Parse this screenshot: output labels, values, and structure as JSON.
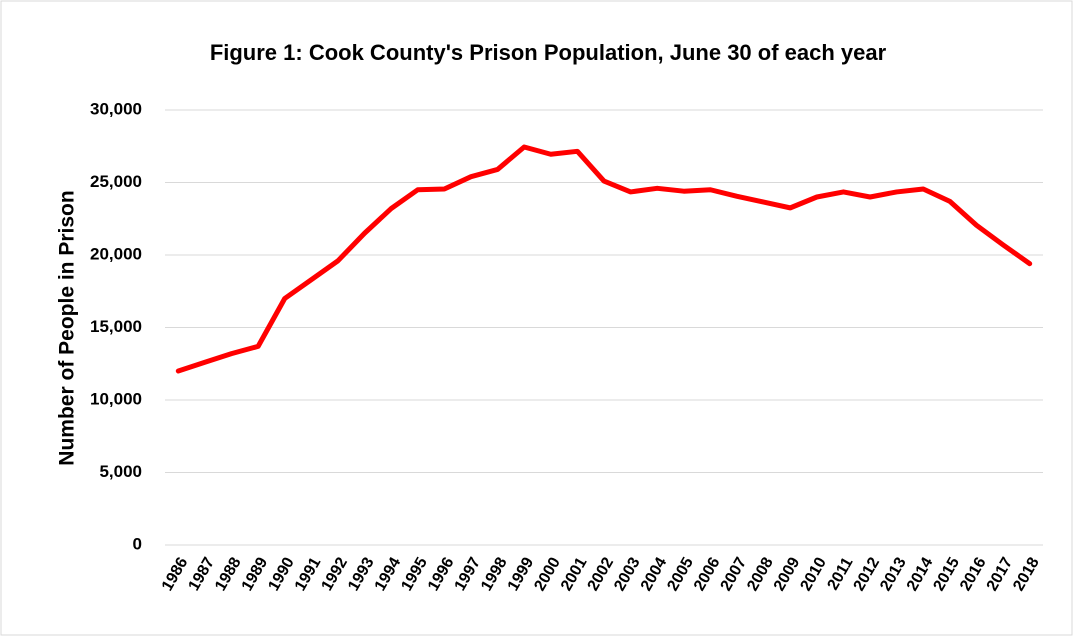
{
  "chart_data": {
    "type": "line",
    "title": "Figure 1: Cook County's Prison Population, June 30 of each year",
    "y_label": "Number of People in Prison",
    "categories": [
      "1986",
      "1987",
      "1988",
      "1989",
      "1990",
      "1991",
      "1992",
      "1993",
      "1994",
      "1995",
      "1996",
      "1997",
      "1998",
      "1999",
      "2000",
      "2001",
      "2002",
      "2003",
      "2004",
      "2005",
      "2006",
      "2007",
      "2008",
      "2009",
      "2010",
      "2011",
      "2012",
      "2013",
      "2014",
      "2015",
      "2016",
      "2017",
      "2018"
    ],
    "series": [
      {
        "name": "Prison Population",
        "color": "#ff0000",
        "values": [
          12000,
          12600,
          13200,
          13700,
          17000,
          18300,
          19600,
          21500,
          23200,
          24500,
          24550,
          25400,
          25900,
          27450,
          26950,
          27150,
          25100,
          24350,
          24600,
          24400,
          24500,
          24050,
          23650,
          23250,
          24000,
          24350,
          24000,
          24350,
          24550,
          23700,
          22050,
          20700,
          19400
        ]
      }
    ],
    "ylim": [
      0,
      30000
    ],
    "yticks": [
      0,
      {
        "value": 5000,
        "label": "5,000"
      },
      {
        "value": 10000,
        "label": "10,000"
      },
      {
        "value": 15000,
        "label": "15,000"
      },
      {
        "value": 20000,
        "label": "20,000"
      },
      {
        "value": 25000,
        "label": "25,000"
      },
      {
        "value": 30000,
        "label": "30,000"
      }
    ],
    "grid": true
  }
}
